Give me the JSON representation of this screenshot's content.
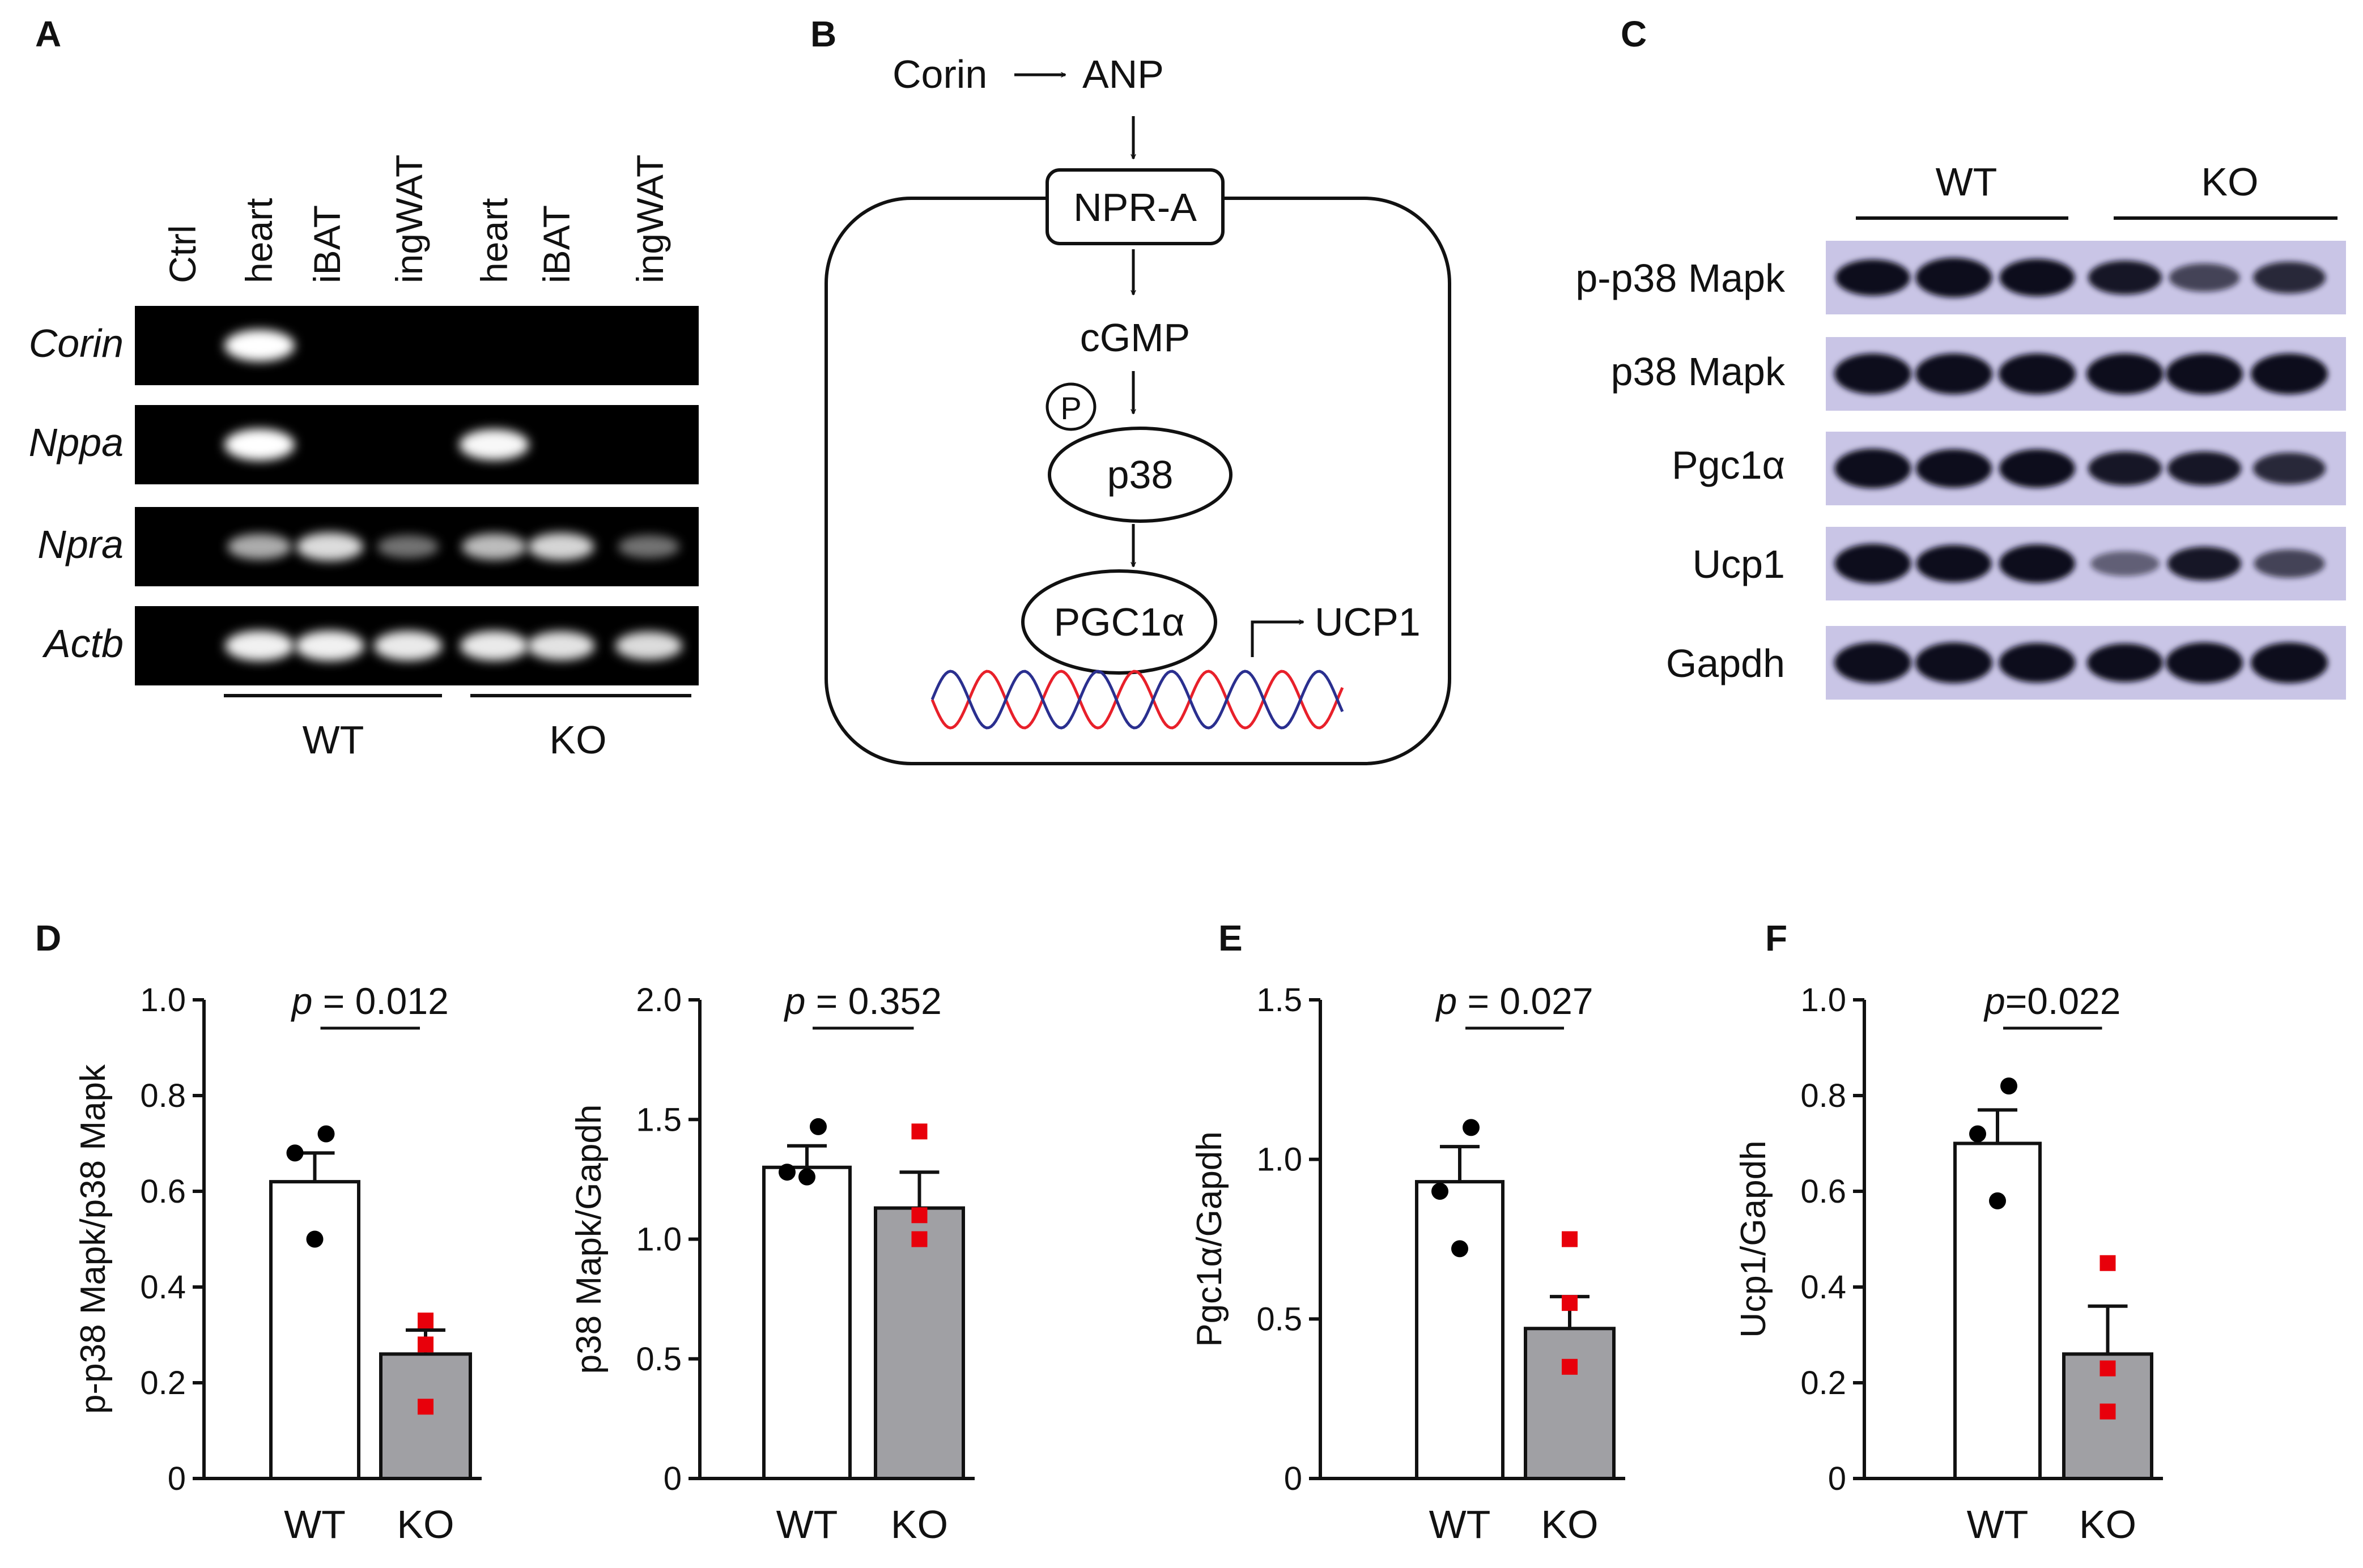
{
  "panels": {
    "A": {
      "label": "A",
      "lanes": [
        "Ctrl",
        "heart",
        "iBAT",
        "ingWAT",
        "heart",
        "iBAT",
        "ingWAT"
      ],
      "genes": [
        "Corin",
        "Nppa",
        "Npra",
        "Actb"
      ],
      "groups": [
        "WT",
        "KO"
      ],
      "band_intensity": [
        [
          0,
          1.0,
          0,
          0,
          0,
          0,
          0
        ],
        [
          0,
          1.0,
          0,
          0,
          0.95,
          0,
          0
        ],
        [
          0,
          0.55,
          0.75,
          0.35,
          0.6,
          0.7,
          0.35
        ],
        [
          0,
          0.9,
          0.9,
          0.85,
          0.85,
          0.8,
          0.75
        ]
      ]
    },
    "B": {
      "label": "B",
      "nodes": {
        "corin": "Corin",
        "anp": "ANP",
        "npra": "NPR-A",
        "cgmp": "cGMP",
        "phospho": "P",
        "p38": "p38",
        "pgc1a": "PGC1α",
        "ucp1": "UCP1"
      },
      "dna_colors": [
        "#e8202a",
        "#2a2f8f"
      ]
    },
    "C": {
      "label": "C",
      "groups": [
        "WT",
        "KO"
      ],
      "proteins": [
        "p-p38 Mapk",
        "p38 Mapk",
        "Pgc1α",
        "Ucp1",
        "Gapdh"
      ],
      "blot_bg": "#c9c5e6",
      "band_intensity": [
        [
          0.8,
          0.95,
          0.85,
          0.7,
          0.45,
          0.6
        ],
        [
          1.0,
          1.0,
          1.0,
          1.0,
          1.0,
          1.0
        ],
        [
          0.95,
          0.9,
          0.9,
          0.7,
          0.7,
          0.6
        ],
        [
          0.95,
          0.85,
          0.9,
          0.3,
          0.7,
          0.45
        ],
        [
          1.0,
          1.0,
          0.95,
          0.9,
          1.0,
          1.0
        ]
      ]
    },
    "D": {
      "label": "D"
    },
    "E": {
      "label": "E"
    },
    "F": {
      "label": "F"
    }
  },
  "chart_data": [
    {
      "type": "bar",
      "panel": "D",
      "categories": [
        "WT",
        "KO"
      ],
      "values": [
        0.62,
        0.26
      ],
      "errors": [
        0.06,
        0.05
      ],
      "points": [
        [
          0.72,
          0.68,
          0.5
        ],
        [
          0.33,
          0.28,
          0.15
        ]
      ],
      "ylabel": "p-p38 Mapk/p38 Mapk",
      "ylim": [
        0,
        1.0
      ],
      "yticks": [
        "0",
        "0.2",
        "0.4",
        "0.6",
        "0.8",
        "1.0"
      ],
      "pvalue_label": "p",
      "pvalue_text": " = 0.012",
      "colors": [
        "#ffffff",
        "#a0a0a4"
      ],
      "point_colors": [
        "#000000",
        "#e8000b"
      ]
    },
    {
      "type": "bar",
      "panel": "D",
      "categories": [
        "WT",
        "KO"
      ],
      "values": [
        1.3,
        1.13
      ],
      "errors": [
        0.09,
        0.15
      ],
      "points": [
        [
          1.47,
          1.28,
          1.26
        ],
        [
          1.45,
          1.1,
          1.0
        ]
      ],
      "ylabel": "p38 Mapk/Gapdh",
      "ylim": [
        0,
        2.0
      ],
      "yticks": [
        "0",
        "0.5",
        "1.0",
        "1.5",
        "2.0"
      ],
      "pvalue_label": "p",
      "pvalue_text": " = 0.352",
      "colors": [
        "#ffffff",
        "#a0a0a4"
      ],
      "point_colors": [
        "#000000",
        "#e8000b"
      ]
    },
    {
      "type": "bar",
      "panel": "E",
      "categories": [
        "WT",
        "KO"
      ],
      "values": [
        0.93,
        0.47
      ],
      "errors": [
        0.11,
        0.1
      ],
      "points": [
        [
          1.1,
          0.9,
          0.72
        ],
        [
          0.75,
          0.55,
          0.35
        ]
      ],
      "ylabel": "Pgc1α/Gapdh",
      "ylim": [
        0,
        1.5
      ],
      "yticks": [
        "0",
        "0.5",
        "1.0",
        "1.5"
      ],
      "pvalue_label": "p",
      "pvalue_text": " = 0.027",
      "colors": [
        "#ffffff",
        "#a0a0a4"
      ],
      "point_colors": [
        "#000000",
        "#e8000b"
      ]
    },
    {
      "type": "bar",
      "panel": "F",
      "categories": [
        "WT",
        "KO"
      ],
      "values": [
        0.7,
        0.26
      ],
      "errors": [
        0.07,
        0.1
      ],
      "points": [
        [
          0.82,
          0.72,
          0.58
        ],
        [
          0.45,
          0.23,
          0.14
        ]
      ],
      "ylabel": "Ucp1/Gapdh",
      "ylim": [
        0,
        1.0
      ],
      "yticks": [
        "0",
        "0.2",
        "0.4",
        "0.6",
        "0.8",
        "1.0"
      ],
      "pvalue_label": "p",
      "pvalue_text": "=0.022",
      "colors": [
        "#ffffff",
        "#a0a0a4"
      ],
      "point_colors": [
        "#000000",
        "#e8000b"
      ]
    }
  ]
}
